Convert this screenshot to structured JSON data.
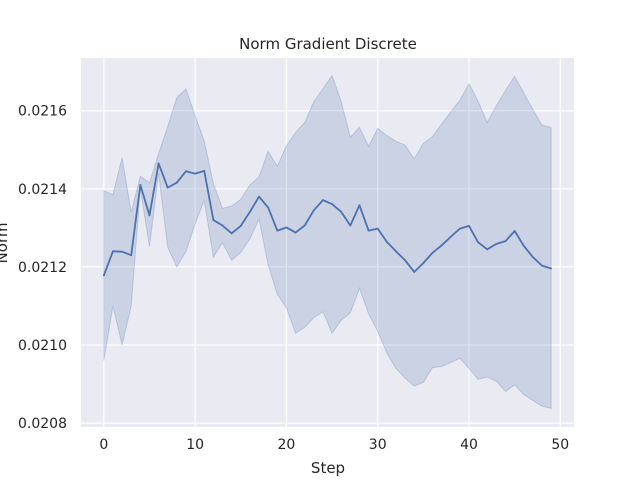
{
  "chart_data": {
    "type": "line",
    "title": "Norm Gradient Discrete",
    "xlabel": "Step",
    "ylabel": "Norm",
    "xlim": [
      -2.5,
      51.5
    ],
    "ylim": [
      0.02079,
      0.021735
    ],
    "x_ticks": [
      0,
      10,
      20,
      30,
      40,
      50
    ],
    "x_tick_labels": [
      "0",
      "10",
      "20",
      "30",
      "40",
      "50"
    ],
    "y_ticks": [
      0.0208,
      0.021,
      0.0212,
      0.0214,
      0.0216
    ],
    "y_tick_labels": [
      "0.0208",
      "0.0210",
      "0.0212",
      "0.0214",
      "0.0216"
    ],
    "grid": true,
    "colors": {
      "background": "#eaeaf2",
      "grid": "#ffffff",
      "line": "#4c72b0",
      "band": "#4c72b0"
    },
    "series": [
      {
        "x": [
          0,
          1,
          2,
          3,
          4,
          5,
          6,
          7,
          8,
          9,
          10,
          11,
          12,
          13,
          14,
          15,
          16,
          17,
          18,
          19,
          20,
          21,
          22,
          23,
          24,
          25,
          26,
          27,
          28,
          29,
          30,
          31,
          32,
          33,
          34,
          35,
          36,
          37,
          38,
          39,
          40,
          41,
          42,
          43,
          44,
          45,
          46,
          47,
          48,
          49
        ],
        "mean": [
          0.021178,
          0.02124,
          0.021239,
          0.02123,
          0.02141,
          0.021332,
          0.021465,
          0.021403,
          0.021416,
          0.021445,
          0.021439,
          0.021446,
          0.02132,
          0.021306,
          0.021286,
          0.021305,
          0.021341,
          0.02138,
          0.021352,
          0.021293,
          0.021301,
          0.021288,
          0.021306,
          0.021345,
          0.021371,
          0.021361,
          0.021341,
          0.021306,
          0.021358,
          0.021293,
          0.021298,
          0.021264,
          0.02124,
          0.021217,
          0.021187,
          0.02121,
          0.021236,
          0.021255,
          0.021277,
          0.021298,
          0.021305,
          0.021263,
          0.021245,
          0.021259,
          0.021266,
          0.021292,
          0.021254,
          0.021225,
          0.021203,
          0.021196
        ],
        "lower": [
          0.02096,
          0.0211,
          0.021,
          0.0211,
          0.0214,
          0.021252,
          0.02144,
          0.02125,
          0.0212,
          0.02124,
          0.02131,
          0.02137,
          0.021225,
          0.021262,
          0.021217,
          0.021237,
          0.021272,
          0.021322,
          0.021205,
          0.02113,
          0.021095,
          0.02103,
          0.021045,
          0.02107,
          0.021085,
          0.02103,
          0.021063,
          0.021082,
          0.021145,
          0.02108,
          0.021035,
          0.02098,
          0.02094,
          0.020915,
          0.020895,
          0.020904,
          0.020942,
          0.020945,
          0.020955,
          0.020966,
          0.02094,
          0.020912,
          0.020918,
          0.020907,
          0.020881,
          0.020898,
          0.020873,
          0.020858,
          0.020843,
          0.020838
        ],
        "upper": [
          0.021395,
          0.021385,
          0.02148,
          0.02134,
          0.021432,
          0.021415,
          0.02149,
          0.02156,
          0.021634,
          0.021656,
          0.021587,
          0.021522,
          0.021413,
          0.02135,
          0.021356,
          0.021373,
          0.02141,
          0.02143,
          0.021496,
          0.021458,
          0.02151,
          0.021544,
          0.02157,
          0.021623,
          0.021656,
          0.02169,
          0.021624,
          0.021532,
          0.021557,
          0.021509,
          0.021555,
          0.021536,
          0.021522,
          0.021512,
          0.021477,
          0.021516,
          0.021534,
          0.021566,
          0.021597,
          0.021627,
          0.021669,
          0.021624,
          0.02157,
          0.021613,
          0.021652,
          0.021688,
          0.021645,
          0.021603,
          0.021563,
          0.021557
        ]
      }
    ]
  }
}
